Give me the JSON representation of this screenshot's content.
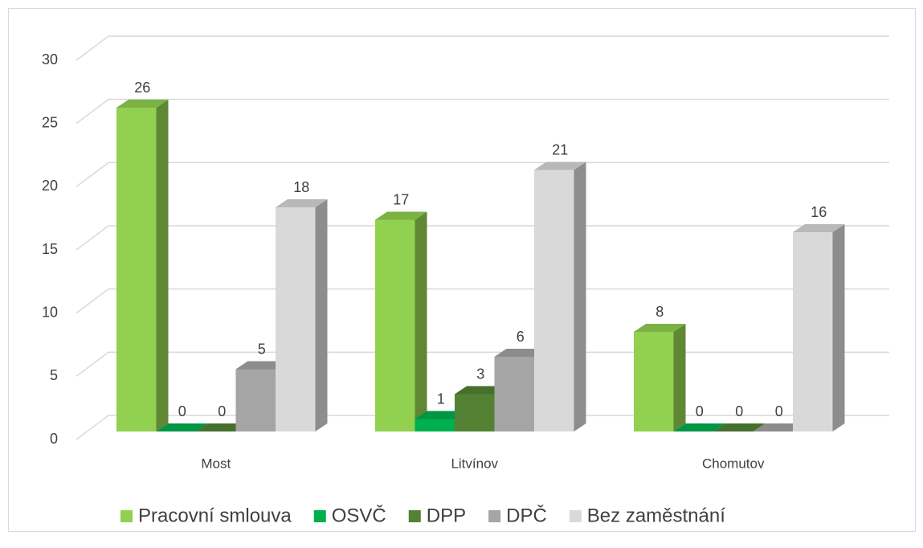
{
  "chart_data": {
    "type": "bar3d",
    "categories": [
      "Most",
      "Litvínov",
      "Chomutov"
    ],
    "series": [
      {
        "name": "Pracovní smlouva",
        "color": "#92d050",
        "values": [
          26,
          17,
          8
        ]
      },
      {
        "name": "OSVČ",
        "color": "#00b050",
        "values": [
          0,
          1,
          0
        ]
      },
      {
        "name": "DPP",
        "color": "#548235",
        "values": [
          0,
          3,
          0
        ]
      },
      {
        "name": "DPČ",
        "color": "#a5a5a5",
        "values": [
          5,
          6,
          0
        ]
      },
      {
        "name": "Bez zaměstnání",
        "color": "#d9d9d9",
        "values": [
          18,
          21,
          16
        ]
      }
    ],
    "ylim": [
      0,
      30
    ],
    "yticks": [
      0,
      5,
      10,
      15,
      20,
      25,
      30
    ],
    "grid": true,
    "legend": "bottom"
  }
}
